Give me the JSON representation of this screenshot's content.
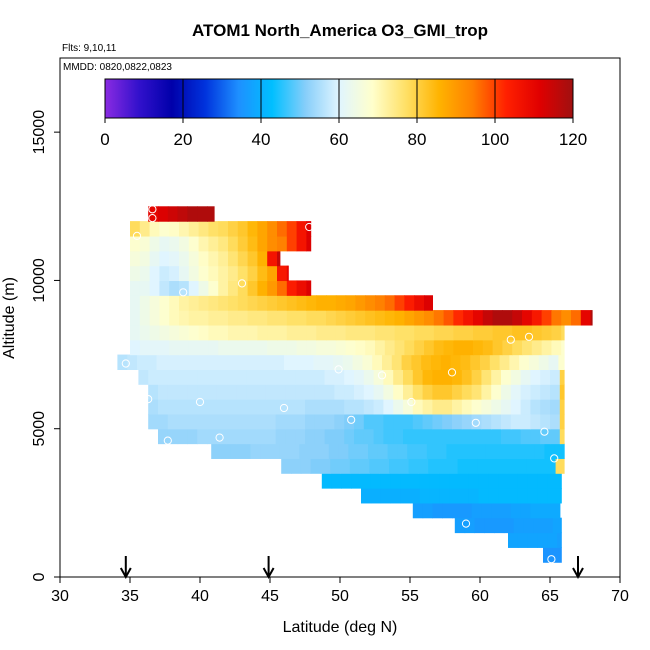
{
  "chart_data": {
    "type": "heatmap",
    "title": "ATOM1 North_America O3_GMI_trop",
    "annotations": {
      "flights": "Flts: 9,10,11",
      "dates": "MMDD: 0820,0822,0823"
    },
    "xlabel": "Latitude (deg N)",
    "ylabel": "Altitude (m)",
    "xlim": [
      30,
      70
    ],
    "ylim": [
      0,
      17500
    ],
    "x_ticks": [
      "30",
      "35",
      "40",
      "45",
      "50",
      "55",
      "60",
      "65",
      "70"
    ],
    "y_ticks": [
      "0",
      "5000",
      "10000",
      "15000"
    ],
    "grid": false,
    "colorbar": {
      "range": [
        0,
        120
      ],
      "ticks": [
        "0",
        "20",
        "40",
        "60",
        "80",
        "100",
        "120"
      ],
      "placement": "top, inside plot"
    },
    "colorscale": [
      "#8a2be2",
      "#3311cc",
      "#0000aa",
      "#0033dd",
      "#1e90ff",
      "#00bfff",
      "#87cefa",
      "#e0f5ff",
      "#ffffcc",
      "#ffe066",
      "#ffb300",
      "#ff7f00",
      "#ff2000",
      "#e00000",
      "#a01010"
    ],
    "cell_size": {
      "dlat": 0.7,
      "dalt": 500
    },
    "rows": [
      {
        "alt": 750,
        "lat0": 64.5,
        "lat1": 65.8,
        "o3": [
          35,
          35
        ]
      },
      {
        "alt": 1250,
        "lat0": 62.0,
        "lat1": 65.8,
        "o3": [
          38,
          38,
          38,
          38,
          38,
          37
        ]
      },
      {
        "alt": 1750,
        "lat0": 58.2,
        "lat1": 65.8,
        "o3": [
          37,
          37,
          36,
          36,
          36,
          36,
          37,
          37,
          37,
          37,
          38
        ]
      },
      {
        "alt": 2250,
        "lat0": 55.2,
        "lat1": 65.8,
        "o3": [
          37,
          37,
          36,
          36,
          36,
          36,
          37,
          37,
          37,
          37,
          38,
          38,
          39,
          39,
          39
        ]
      },
      {
        "alt": 2750,
        "lat0": 51.5,
        "lat1": 65.8,
        "o3": [
          40,
          40,
          40,
          40,
          40,
          40,
          41,
          41,
          41,
          41,
          41,
          41,
          42,
          42,
          42,
          42,
          42,
          42,
          42,
          42,
          42
        ]
      },
      {
        "alt": 3250,
        "lat0": 48.7,
        "lat1": 65.8,
        "o3": [
          42,
          42,
          42,
          42,
          42,
          42,
          42,
          42,
          42,
          42,
          42,
          42,
          42,
          42,
          42,
          42,
          42,
          42,
          42,
          42,
          42,
          42,
          42,
          42,
          42
        ]
      },
      {
        "alt": 3750,
        "lat0": 45.8,
        "lat1": 66.0,
        "o3": [
          52,
          52,
          52,
          51,
          51,
          50,
          50,
          49,
          49,
          48,
          48,
          47,
          47,
          46,
          46,
          45,
          45,
          45,
          44,
          44,
          44,
          44,
          44,
          44,
          44,
          44,
          44,
          44,
          78
        ]
      },
      {
        "alt": 4250,
        "lat0": 40.8,
        "lat1": 66.0,
        "o3": [
          52,
          52,
          52,
          52,
          53,
          53,
          53,
          53,
          53,
          52,
          52,
          52,
          51,
          51,
          50,
          50,
          49,
          49,
          48,
          48,
          47,
          47,
          46,
          46,
          45,
          45,
          45,
          45,
          45,
          45,
          45,
          45,
          45,
          45,
          44,
          44,
          44,
          78
        ]
      },
      {
        "alt": 4750,
        "lat0": 37.0,
        "lat1": 66.0,
        "o3": [
          53,
          53,
          53,
          53,
          54,
          54,
          54,
          54,
          54,
          54,
          54,
          54,
          53,
          53,
          53,
          52,
          52,
          51,
          51,
          50,
          49,
          49,
          48,
          47,
          47,
          46,
          46,
          46,
          46,
          46,
          46,
          46,
          46,
          46,
          46,
          47,
          47,
          48,
          48,
          49,
          49,
          78
        ]
      },
      {
        "alt": 5250,
        "lat0": 36.3,
        "lat1": 66.0,
        "o3": [
          54,
          54,
          55,
          55,
          55,
          55,
          55,
          55,
          55,
          55,
          55,
          55,
          55,
          54,
          54,
          54,
          53,
          53,
          53,
          52,
          51,
          50,
          48,
          48,
          47,
          47,
          47,
          48,
          49,
          50,
          51,
          52,
          53,
          54,
          55,
          56,
          57,
          58,
          58,
          57,
          56,
          55,
          80
        ]
      },
      {
        "alt": 5750,
        "lat0": 36.3,
        "lat1": 66.0,
        "o3": [
          55,
          56,
          56,
          56,
          56,
          56,
          56,
          56,
          56,
          56,
          56,
          56,
          56,
          56,
          56,
          56,
          55,
          55,
          55,
          55,
          56,
          56,
          57,
          58,
          60,
          63,
          66,
          70,
          72,
          74,
          74,
          72,
          70,
          68,
          66,
          64,
          62,
          60,
          58,
          56,
          55,
          54,
          80
        ]
      },
      {
        "alt": 6250,
        "lat0": 36.3,
        "lat1": 66.0,
        "o3": [
          56,
          57,
          57,
          57,
          57,
          57,
          57,
          57,
          57,
          57,
          57,
          57,
          57,
          57,
          57,
          57,
          57,
          57,
          57,
          58,
          58,
          59,
          60,
          62,
          65,
          69,
          73,
          77,
          80,
          82,
          82,
          80,
          78,
          76,
          72,
          68,
          64,
          61,
          59,
          58,
          57,
          56,
          82
        ]
      },
      {
        "alt": 6750,
        "lat0": 35.6,
        "lat1": 66.0,
        "o3": [
          57,
          58,
          58,
          58,
          58,
          58,
          58,
          58,
          58,
          58,
          58,
          58,
          58,
          58,
          58,
          58,
          58,
          58,
          58,
          59,
          59,
          60,
          61,
          63,
          66,
          70,
          74,
          78,
          82,
          85,
          86,
          86,
          85,
          83,
          80,
          76,
          72,
          68,
          65,
          62,
          60,
          59,
          58,
          80
        ]
      },
      {
        "alt": 7250,
        "lat0": 34.1,
        "lat1": 66.0,
        "o3": [
          56,
          57,
          58,
          58,
          59,
          59,
          59,
          59,
          59,
          59,
          59,
          59,
          59,
          59,
          59,
          59,
          59,
          60,
          60,
          60,
          61,
          61,
          62,
          63,
          65,
          67,
          70,
          73,
          76,
          80,
          82,
          84,
          85,
          86,
          85,
          84,
          82,
          80,
          77,
          74,
          71,
          68,
          66,
          64,
          62,
          68
        ]
      },
      {
        "alt": 7750,
        "lat0": 35.0,
        "lat1": 66.0,
        "o3": [
          60,
          61,
          61,
          61,
          62,
          62,
          62,
          62,
          62,
          63,
          63,
          63,
          63,
          63,
          64,
          64,
          64,
          65,
          65,
          66,
          66,
          67,
          68,
          69,
          70,
          72,
          74,
          76,
          78,
          80,
          82,
          84,
          85,
          86,
          86,
          85,
          84,
          82,
          80,
          78,
          76,
          74,
          72,
          70,
          68
        ]
      },
      {
        "alt": 8250,
        "lat0": 35.0,
        "lat1": 66.0,
        "o3": [
          62,
          63,
          64,
          65,
          66,
          67,
          68,
          69,
          70,
          70,
          71,
          71,
          71,
          72,
          72,
          72,
          73,
          73,
          73,
          74,
          74,
          74,
          75,
          75,
          75,
          76,
          76,
          77,
          77,
          78,
          78,
          79,
          79,
          80,
          80,
          81,
          81,
          82,
          82,
          83,
          83,
          82,
          81,
          80,
          78
        ]
      },
      {
        "alt": 8750,
        "lat0": 35.0,
        "lat1": 68.0,
        "o3": [
          62,
          64,
          66,
          68,
          70,
          71,
          72,
          72,
          73,
          73,
          74,
          74,
          75,
          75,
          76,
          76,
          77,
          77,
          78,
          78,
          79,
          80,
          81,
          82,
          83,
          84,
          85,
          86,
          88,
          90,
          92,
          95,
          98,
          102,
          106,
          110,
          115,
          118,
          118,
          115,
          110,
          105,
          100,
          95,
          92,
          96,
          110,
          118
        ]
      },
      {
        "alt": 9250,
        "lat0": 35.0,
        "lat1": 56.6,
        "o3": [
          62,
          64,
          66,
          68,
          70,
          72,
          73,
          74,
          75,
          76,
          77,
          78,
          79,
          80,
          81,
          82,
          83,
          84,
          85,
          86,
          86,
          87,
          88,
          90,
          92,
          94,
          96,
          100,
          104,
          108,
          112
        ]
      },
      {
        "alt": 9750,
        "lat0": 35.0,
        "lat1": 47.9,
        "o3": [
          62,
          62,
          60,
          57,
          55,
          56,
          60,
          64,
          68,
          72,
          75,
          78,
          82,
          86,
          90,
          96,
          104,
          108,
          112
        ]
      },
      {
        "alt": 10250,
        "lat0": 35.0,
        "lat1": 46.3,
        "o3": [
          64,
          63,
          60,
          58,
          59,
          62,
          65,
          68,
          70,
          72,
          74,
          77,
          80,
          84,
          88,
          105,
          110
        ]
      },
      {
        "alt": 10750,
        "lat0": 35.0,
        "lat1": 45.7,
        "o3": [
          66,
          65,
          62,
          60,
          61,
          63,
          66,
          69,
          71,
          73,
          76,
          79,
          82,
          86,
          106,
          115
        ]
      },
      {
        "alt": 11250,
        "lat0": 35.0,
        "lat1": 47.9,
        "o3": [
          68,
          67,
          64,
          62,
          63,
          65,
          68,
          71,
          73,
          75,
          78,
          81,
          84,
          88,
          92,
          94,
          100,
          106,
          112
        ]
      },
      {
        "alt": 11750,
        "lat0": 35.0,
        "lat1": 47.9,
        "o3": [
          78,
          74,
          70,
          68,
          69,
          71,
          73,
          75,
          77,
          78,
          80,
          82,
          85,
          88,
          92,
          96,
          100,
          106,
          112
        ]
      },
      {
        "alt": 12250,
        "lat0": 36.3,
        "lat1": 41.0,
        "o3": [
          110,
          112,
          114,
          116,
          118,
          118,
          118
        ]
      }
    ],
    "flight_track_points": [
      [
        34.7,
        7200
      ],
      [
        35.5,
        11500
      ],
      [
        36.3,
        6000
      ],
      [
        36.6,
        12100
      ],
      [
        36.6,
        12400
      ],
      [
        37.7,
        4600
      ],
      [
        38.8,
        9600
      ],
      [
        40.0,
        5900
      ],
      [
        41.4,
        4700
      ],
      [
        43.0,
        9900
      ],
      [
        46.0,
        5700
      ],
      [
        47.8,
        11800
      ],
      [
        49.9,
        7000
      ],
      [
        50.8,
        5300
      ],
      [
        53.0,
        6800
      ],
      [
        55.1,
        5900
      ],
      [
        58.0,
        6900
      ],
      [
        59.0,
        1800
      ],
      [
        59.7,
        5200
      ],
      [
        62.2,
        8000
      ],
      [
        63.5,
        8100
      ],
      [
        64.6,
        4900
      ],
      [
        65.3,
        4000
      ],
      [
        65.1,
        600
      ],
      [
        66.7,
        7800
      ]
    ],
    "markers": {
      "type": "down-arrow",
      "x": [
        34.7,
        44.9,
        67.0
      ]
    }
  }
}
